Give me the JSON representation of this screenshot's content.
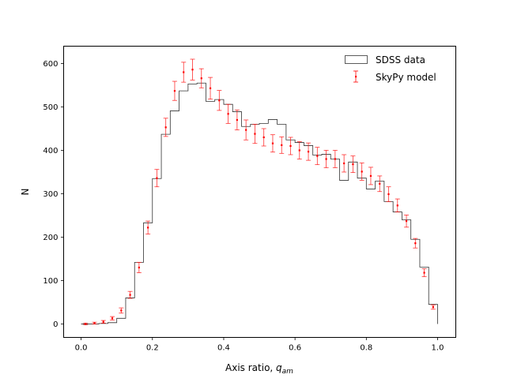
{
  "chart_data": {
    "type": "bar",
    "title": "",
    "xlabel": "Axis ratio, ",
    "xlabel_math": "q",
    "xlabel_sub": "am",
    "ylabel": "N",
    "xlim": [
      -0.049,
      1.051
    ],
    "ylim": [
      -31,
      640
    ],
    "xticks": [
      0.0,
      0.2,
      0.4,
      0.6,
      0.8,
      1.0
    ],
    "xtick_labels": [
      "0.0",
      "0.2",
      "0.4",
      "0.6",
      "0.8",
      "1.0"
    ],
    "yticks": [
      0,
      100,
      200,
      300,
      400,
      500,
      600
    ],
    "ytick_labels": [
      "0",
      "100",
      "200",
      "300",
      "400",
      "500",
      "600"
    ],
    "grid": false,
    "legend_position": "top-right",
    "bin_width": 0.025,
    "series": [
      {
        "name": "SDSS data",
        "kind": "step-histogram",
        "color": "#333333",
        "values": [
          0,
          0,
          1,
          3,
          13,
          60,
          142,
          233,
          335,
          437,
          491,
          537,
          553,
          555,
          513,
          517,
          506,
          489,
          455,
          460,
          462,
          471,
          460,
          424,
          418,
          411,
          389,
          391,
          380,
          331,
          373,
          336,
          311,
          329,
          282,
          258,
          240,
          195,
          131,
          45
        ]
      },
      {
        "name": "SkyPy model",
        "kind": "errorbar",
        "color": "#ff0000",
        "values": [
          0,
          2,
          5,
          13,
          31,
          67,
          130,
          222,
          336,
          453,
          537,
          580,
          586,
          566,
          543,
          515,
          484,
          470,
          447,
          438,
          430,
          416,
          412,
          410,
          400,
          397,
          387,
          380,
          380,
          370,
          368,
          351,
          341,
          323,
          299,
          273,
          237,
          186,
          118,
          39
        ],
        "errors": [
          2,
          2,
          3,
          4,
          6,
          8,
          12,
          15,
          20,
          21,
          22,
          23,
          24,
          22,
          25,
          23,
          22,
          23,
          23,
          22,
          20,
          20,
          19,
          20,
          20,
          20,
          20,
          20,
          20,
          20,
          19,
          20,
          20,
          18,
          17,
          15,
          14,
          11,
          9,
          5
        ]
      }
    ]
  }
}
